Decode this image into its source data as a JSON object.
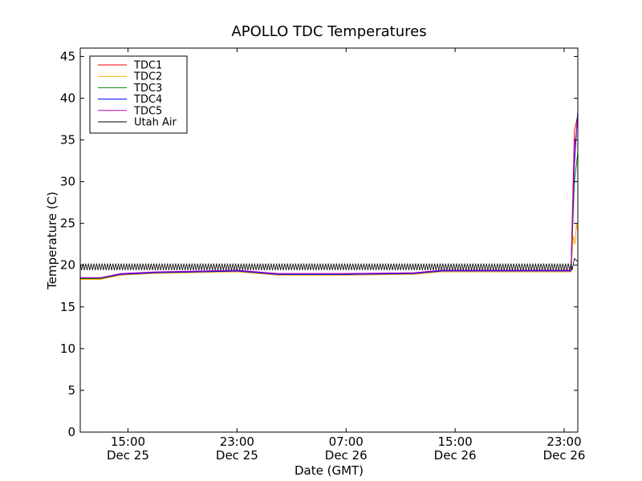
{
  "chart_data": {
    "type": "line",
    "title": "APOLLO TDC Temperatures",
    "xlabel": "Date (GMT)",
    "ylabel": "Temperature (C)",
    "ylim": [
      0,
      46
    ],
    "xlim": [
      "2012-12-25 11:30",
      "2012-12-27 00:00"
    ],
    "yticks": [
      0,
      5,
      10,
      15,
      20,
      25,
      30,
      35,
      40,
      45
    ],
    "xticks": [
      {
        "x": "2012-12-25 15:00",
        "time": "15:00",
        "date": "Dec 25"
      },
      {
        "x": "2012-12-25 23:00",
        "time": "23:00",
        "date": "Dec 25"
      },
      {
        "x": "2012-12-26 07:00",
        "time": "07:00",
        "date": "Dec 26"
      },
      {
        "x": "2012-12-26 15:00",
        "time": "15:00",
        "date": "Dec 26"
      },
      {
        "x": "2012-12-26 23:00",
        "time": "23:00",
        "date": "Dec 26"
      }
    ],
    "grid": false,
    "legend_position": "top-left",
    "series": [
      {
        "name": "TDC1",
        "color": "#ff0000",
        "points": [
          [
            "2012-12-25 11:30",
            18.4
          ],
          [
            "2012-12-25 13:00",
            18.4
          ],
          [
            "2012-12-25 14:30",
            18.9
          ],
          [
            "2012-12-25 17:00",
            19.1
          ],
          [
            "2012-12-25 23:00",
            19.3
          ],
          [
            "2012-12-26 02:00",
            18.9
          ],
          [
            "2012-12-26 07:00",
            18.9
          ],
          [
            "2012-12-26 12:00",
            19.0
          ],
          [
            "2012-12-26 14:00",
            19.3
          ],
          [
            "2012-12-26 23:30",
            19.3
          ],
          [
            "2012-12-26 23:45",
            36.0
          ],
          [
            "2012-12-27 00:00",
            38.0
          ]
        ]
      },
      {
        "name": "TDC2",
        "color": "#ffaa00",
        "points": [
          [
            "2012-12-25 11:30",
            18.3
          ],
          [
            "2012-12-25 13:00",
            18.3
          ],
          [
            "2012-12-25 14:30",
            18.8
          ],
          [
            "2012-12-25 17:00",
            19.0
          ],
          [
            "2012-12-25 23:00",
            19.2
          ],
          [
            "2012-12-26 02:00",
            18.8
          ],
          [
            "2012-12-26 07:00",
            18.8
          ],
          [
            "2012-12-26 12:00",
            18.9
          ],
          [
            "2012-12-26 14:00",
            19.2
          ],
          [
            "2012-12-26 23:30",
            19.2
          ],
          [
            "2012-12-26 23:40",
            23.5
          ],
          [
            "2012-12-26 23:48",
            22.5
          ],
          [
            "2012-12-26 23:54",
            25.0
          ],
          [
            "2012-12-27 00:00",
            24.0
          ]
        ]
      },
      {
        "name": "TDC3",
        "color": "#008000",
        "points": [
          [
            "2012-12-25 11:30",
            18.4
          ],
          [
            "2012-12-25 13:00",
            18.4
          ],
          [
            "2012-12-25 14:30",
            18.9
          ],
          [
            "2012-12-25 17:00",
            19.1
          ],
          [
            "2012-12-25 23:00",
            19.3
          ],
          [
            "2012-12-26 02:00",
            18.9
          ],
          [
            "2012-12-26 07:00",
            18.9
          ],
          [
            "2012-12-26 12:00",
            19.0
          ],
          [
            "2012-12-26 14:00",
            19.3
          ],
          [
            "2012-12-26 23:30",
            19.3
          ],
          [
            "2012-12-26 23:45",
            30.0
          ],
          [
            "2012-12-27 00:00",
            33.5
          ]
        ]
      },
      {
        "name": "TDC4",
        "color": "#0000ff",
        "points": [
          [
            "2012-12-25 11:30",
            18.5
          ],
          [
            "2012-12-25 13:00",
            18.5
          ],
          [
            "2012-12-25 14:30",
            18.9
          ],
          [
            "2012-12-25 17:00",
            19.1
          ],
          [
            "2012-12-25 23:00",
            19.3
          ],
          [
            "2012-12-26 02:00",
            18.9
          ],
          [
            "2012-12-26 07:00",
            18.9
          ],
          [
            "2012-12-26 12:00",
            19.0
          ],
          [
            "2012-12-26 14:00",
            19.3
          ],
          [
            "2012-12-26 23:30",
            19.3
          ],
          [
            "2012-12-26 23:45",
            32.0
          ],
          [
            "2012-12-27 00:00",
            38.5
          ]
        ]
      },
      {
        "name": "TDC5",
        "color": "#bf00bf",
        "points": [
          [
            "2012-12-25 11:30",
            18.5
          ],
          [
            "2012-12-25 13:00",
            18.5
          ],
          [
            "2012-12-25 14:30",
            19.0
          ],
          [
            "2012-12-25 17:00",
            19.2
          ],
          [
            "2012-12-25 23:00",
            19.4
          ],
          [
            "2012-12-26 02:00",
            19.0
          ],
          [
            "2012-12-26 07:00",
            19.0
          ],
          [
            "2012-12-26 12:00",
            19.1
          ],
          [
            "2012-12-26 14:00",
            19.4
          ],
          [
            "2012-12-26 23:30",
            19.4
          ],
          [
            "2012-12-26 23:45",
            34.0
          ],
          [
            "2012-12-27 00:00",
            37.5
          ]
        ]
      },
      {
        "name": "Utah Air",
        "color": "#000000",
        "baseline": 19.8,
        "amplitude": 0.4,
        "oscillating": true,
        "points": [
          [
            "2012-12-25 11:30",
            19.8
          ],
          [
            "2012-12-26 23:35",
            19.4
          ],
          [
            "2012-12-26 23:45",
            20.8
          ],
          [
            "2012-12-27 00:00",
            20.4
          ]
        ]
      }
    ]
  }
}
